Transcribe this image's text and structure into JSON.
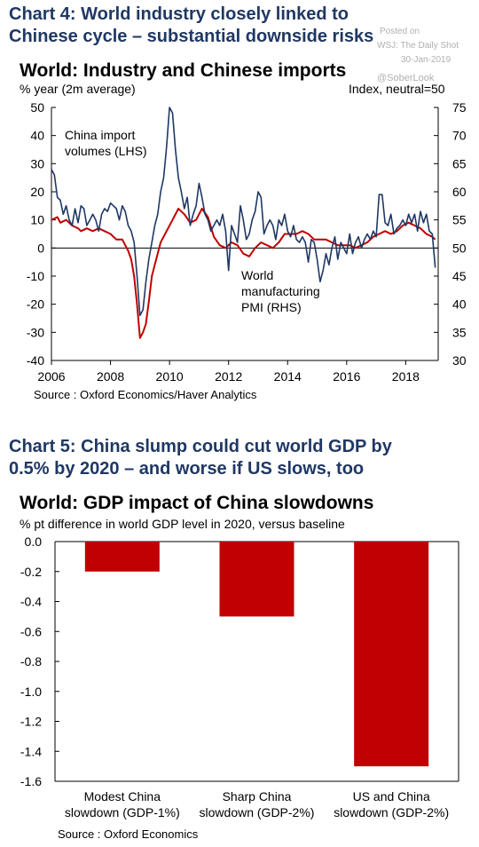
{
  "chart4": {
    "heading_line1": "Chart 4: World industry closely linked to",
    "heading_line2": "Chinese cycle – substantial downside risks",
    "title": "World: Industry and Chinese imports",
    "left_unit": "% year (2m average)",
    "right_unit": "Index, neutral=50",
    "series1_label_line1": "China import",
    "series1_label_line2": "volumes (LHS)",
    "series2_label_line1": "World",
    "series2_label_line2": "manufacturing",
    "series2_label_line3": "PMI (RHS)",
    "source": "Source : Oxford Economics/Haver Analytics",
    "watermark_posted": "Posted on",
    "watermark_source": "WSJ: The Daily Shot",
    "watermark_date": "30-Jan-2019",
    "watermark_handle": "@SoberLook"
  },
  "chart5": {
    "heading_line1": "Chart 5: China slump could cut world GDP by",
    "heading_line2": "0.5% by 2020 – and worse if US slows, too",
    "title": "World: GDP impact of China slowdowns",
    "subtitle": "% pt difference in world GDP level in 2020, versus baseline",
    "source": "Source : Oxford Economics"
  },
  "colors": {
    "heading": "#1f3864",
    "china_line": "#1f3864",
    "pmi_line": "#c00000",
    "bar": "#c00000"
  },
  "chart_data": [
    {
      "type": "line",
      "title": "World: Industry and Chinese imports",
      "x_ticks": [
        "2006",
        "2008",
        "2010",
        "2012",
        "2014",
        "2016",
        "2018"
      ],
      "xlim": [
        2006,
        2019.1
      ],
      "y_left": {
        "label": "% year (2m average)",
        "lim": [
          -40,
          50
        ],
        "ticks": [
          50,
          40,
          30,
          20,
          10,
          0,
          -10,
          -20,
          -30,
          -40
        ]
      },
      "y_right": {
        "label": "Index, neutral=50",
        "lim": [
          30,
          75
        ],
        "ticks": [
          75,
          70,
          65,
          60,
          55,
          50,
          45,
          40,
          35,
          30
        ]
      },
      "series": [
        {
          "name": "China import volumes (LHS)",
          "axis": "left",
          "color": "#1f3864",
          "points": [
            [
              2006.0,
              28
            ],
            [
              2006.1,
              26
            ],
            [
              2006.2,
              18
            ],
            [
              2006.3,
              17
            ],
            [
              2006.4,
              12
            ],
            [
              2006.5,
              15
            ],
            [
              2006.6,
              10
            ],
            [
              2006.7,
              8
            ],
            [
              2006.8,
              14
            ],
            [
              2006.9,
              9
            ],
            [
              2007.0,
              15
            ],
            [
              2007.1,
              14
            ],
            [
              2007.2,
              8
            ],
            [
              2007.3,
              10
            ],
            [
              2007.4,
              12
            ],
            [
              2007.5,
              10
            ],
            [
              2007.6,
              6
            ],
            [
              2007.7,
              12
            ],
            [
              2007.8,
              14
            ],
            [
              2007.9,
              13
            ],
            [
              2008.0,
              16
            ],
            [
              2008.2,
              14
            ],
            [
              2008.3,
              10
            ],
            [
              2008.4,
              15
            ],
            [
              2008.5,
              13
            ],
            [
              2008.6,
              8
            ],
            [
              2008.7,
              6
            ],
            [
              2008.8,
              2
            ],
            [
              2008.9,
              -10
            ],
            [
              2009.0,
              -24
            ],
            [
              2009.1,
              -22
            ],
            [
              2009.2,
              -12
            ],
            [
              2009.3,
              -4
            ],
            [
              2009.4,
              2
            ],
            [
              2009.5,
              8
            ],
            [
              2009.6,
              12
            ],
            [
              2009.7,
              20
            ],
            [
              2009.8,
              25
            ],
            [
              2009.9,
              36
            ],
            [
              2010.0,
              50
            ],
            [
              2010.1,
              48
            ],
            [
              2010.2,
              35
            ],
            [
              2010.3,
              25
            ],
            [
              2010.4,
              20
            ],
            [
              2010.5,
              14
            ],
            [
              2010.6,
              18
            ],
            [
              2010.7,
              8
            ],
            [
              2010.8,
              12
            ],
            [
              2010.9,
              15
            ],
            [
              2011.0,
              23
            ],
            [
              2011.1,
              18
            ],
            [
              2011.2,
              12
            ],
            [
              2011.3,
              10
            ],
            [
              2011.4,
              6
            ],
            [
              2011.5,
              8
            ],
            [
              2011.6,
              10
            ],
            [
              2011.7,
              8
            ],
            [
              2011.8,
              12
            ],
            [
              2011.9,
              6
            ],
            [
              2012.0,
              -8
            ],
            [
              2012.1,
              8
            ],
            [
              2012.2,
              5
            ],
            [
              2012.3,
              2
            ],
            [
              2012.4,
              15
            ],
            [
              2012.5,
              10
            ],
            [
              2012.6,
              3
            ],
            [
              2012.7,
              5
            ],
            [
              2012.8,
              10
            ],
            [
              2012.9,
              13
            ],
            [
              2013.0,
              20
            ],
            [
              2013.1,
              18
            ],
            [
              2013.2,
              5
            ],
            [
              2013.3,
              8
            ],
            [
              2013.4,
              10
            ],
            [
              2013.5,
              8
            ],
            [
              2013.6,
              3
            ],
            [
              2013.7,
              10
            ],
            [
              2013.8,
              8
            ],
            [
              2013.9,
              12
            ],
            [
              2014.0,
              6
            ],
            [
              2014.1,
              4
            ],
            [
              2014.2,
              8
            ],
            [
              2014.3,
              3
            ],
            [
              2014.4,
              2
            ],
            [
              2014.5,
              4
            ],
            [
              2014.6,
              2
            ],
            [
              2014.7,
              -5
            ],
            [
              2014.8,
              3
            ],
            [
              2014.9,
              2
            ],
            [
              2015.0,
              -4
            ],
            [
              2015.1,
              -12
            ],
            [
              2015.2,
              -8
            ],
            [
              2015.3,
              -2
            ],
            [
              2015.4,
              -6
            ],
            [
              2015.5,
              0
            ],
            [
              2015.6,
              4
            ],
            [
              2015.7,
              -4
            ],
            [
              2015.8,
              2
            ],
            [
              2015.9,
              0
            ],
            [
              2016.0,
              -2
            ],
            [
              2016.1,
              5
            ],
            [
              2016.2,
              -2
            ],
            [
              2016.3,
              2
            ],
            [
              2016.4,
              4
            ],
            [
              2016.5,
              0
            ],
            [
              2016.6,
              3
            ],
            [
              2016.7,
              5
            ],
            [
              2016.8,
              3
            ],
            [
              2016.9,
              6
            ],
            [
              2017.0,
              4
            ],
            [
              2017.1,
              19
            ],
            [
              2017.2,
              19
            ],
            [
              2017.3,
              9
            ],
            [
              2017.4,
              8
            ],
            [
              2017.5,
              12
            ],
            [
              2017.6,
              5
            ],
            [
              2017.7,
              7
            ],
            [
              2017.8,
              8
            ],
            [
              2017.9,
              10
            ],
            [
              2018.0,
              8
            ],
            [
              2018.1,
              12
            ],
            [
              2018.2,
              9
            ],
            [
              2018.3,
              12
            ],
            [
              2018.4,
              6
            ],
            [
              2018.5,
              13
            ],
            [
              2018.6,
              9
            ],
            [
              2018.7,
              12
            ],
            [
              2018.8,
              6
            ],
            [
              2018.9,
              5
            ],
            [
              2019.0,
              -7
            ]
          ]
        },
        {
          "name": "World manufacturing PMI (RHS)",
          "axis": "right",
          "color": "#c00000",
          "points": [
            [
              2006.0,
              55
            ],
            [
              2006.2,
              55.5
            ],
            [
              2006.3,
              54.5
            ],
            [
              2006.5,
              55
            ],
            [
              2006.7,
              54
            ],
            [
              2006.9,
              53.5
            ],
            [
              2007.0,
              53
            ],
            [
              2007.2,
              53.5
            ],
            [
              2007.4,
              53
            ],
            [
              2007.6,
              53.5
            ],
            [
              2007.8,
              53
            ],
            [
              2008.0,
              52.5
            ],
            [
              2008.2,
              51.5
            ],
            [
              2008.4,
              51.5
            ],
            [
              2008.6,
              49.5
            ],
            [
              2008.7,
              48
            ],
            [
              2008.8,
              45
            ],
            [
              2008.9,
              40
            ],
            [
              2009.0,
              34
            ],
            [
              2009.1,
              35
            ],
            [
              2009.2,
              36.5
            ],
            [
              2009.3,
              40.5
            ],
            [
              2009.4,
              45
            ],
            [
              2009.5,
              47
            ],
            [
              2009.7,
              51
            ],
            [
              2009.9,
              53
            ],
            [
              2010.1,
              55
            ],
            [
              2010.3,
              57
            ],
            [
              2010.5,
              56
            ],
            [
              2010.7,
              54.5
            ],
            [
              2010.9,
              55
            ],
            [
              2011.1,
              57
            ],
            [
              2011.3,
              55.5
            ],
            [
              2011.5,
              52
            ],
            [
              2011.7,
              50.5
            ],
            [
              2011.9,
              50
            ],
            [
              2012.1,
              51
            ],
            [
              2012.3,
              50.5
            ],
            [
              2012.5,
              49
            ],
            [
              2012.7,
              48.5
            ],
            [
              2012.9,
              50
            ],
            [
              2013.1,
              51
            ],
            [
              2013.3,
              50.5
            ],
            [
              2013.5,
              50
            ],
            [
              2013.7,
              51
            ],
            [
              2013.9,
              52.5
            ],
            [
              2014.1,
              52.5
            ],
            [
              2014.3,
              52.5
            ],
            [
              2014.5,
              53
            ],
            [
              2014.7,
              52.5
            ],
            [
              2014.9,
              51.5
            ],
            [
              2015.1,
              51.5
            ],
            [
              2015.3,
              51.5
            ],
            [
              2015.5,
              51
            ],
            [
              2015.7,
              50.5
            ],
            [
              2015.9,
              50.5
            ],
            [
              2016.1,
              50.5
            ],
            [
              2016.3,
              50
            ],
            [
              2016.5,
              50.5
            ],
            [
              2016.7,
              51
            ],
            [
              2016.9,
              52
            ],
            [
              2017.1,
              52.5
            ],
            [
              2017.3,
              53
            ],
            [
              2017.5,
              52.5
            ],
            [
              2017.7,
              53
            ],
            [
              2017.9,
              54
            ],
            [
              2018.1,
              54.5
            ],
            [
              2018.3,
              54
            ],
            [
              2018.5,
              53.5
            ],
            [
              2018.7,
              52.5
            ],
            [
              2018.9,
              52
            ],
            [
              2019.0,
              51.5
            ]
          ]
        }
      ],
      "hline": 0
    },
    {
      "type": "bar",
      "title": "World: GDP impact of China slowdowns",
      "ylabel": "% pt difference in world GDP level in 2020, versus baseline",
      "ylim": [
        -1.6,
        0.0
      ],
      "y_ticks": [
        "0.0",
        "-0.2",
        "-0.4",
        "-0.6",
        "-0.8",
        "-1.0",
        "-1.2",
        "-1.4",
        "-1.6"
      ],
      "categories": [
        [
          "Modest China",
          "slowdown (GDP-1%)"
        ],
        [
          "Sharp China",
          "slowdown (GDP-2%)"
        ],
        [
          "US and China",
          "slowdown (GDP-2%)"
        ]
      ],
      "values": [
        -0.2,
        -0.5,
        -1.5
      ]
    }
  ]
}
